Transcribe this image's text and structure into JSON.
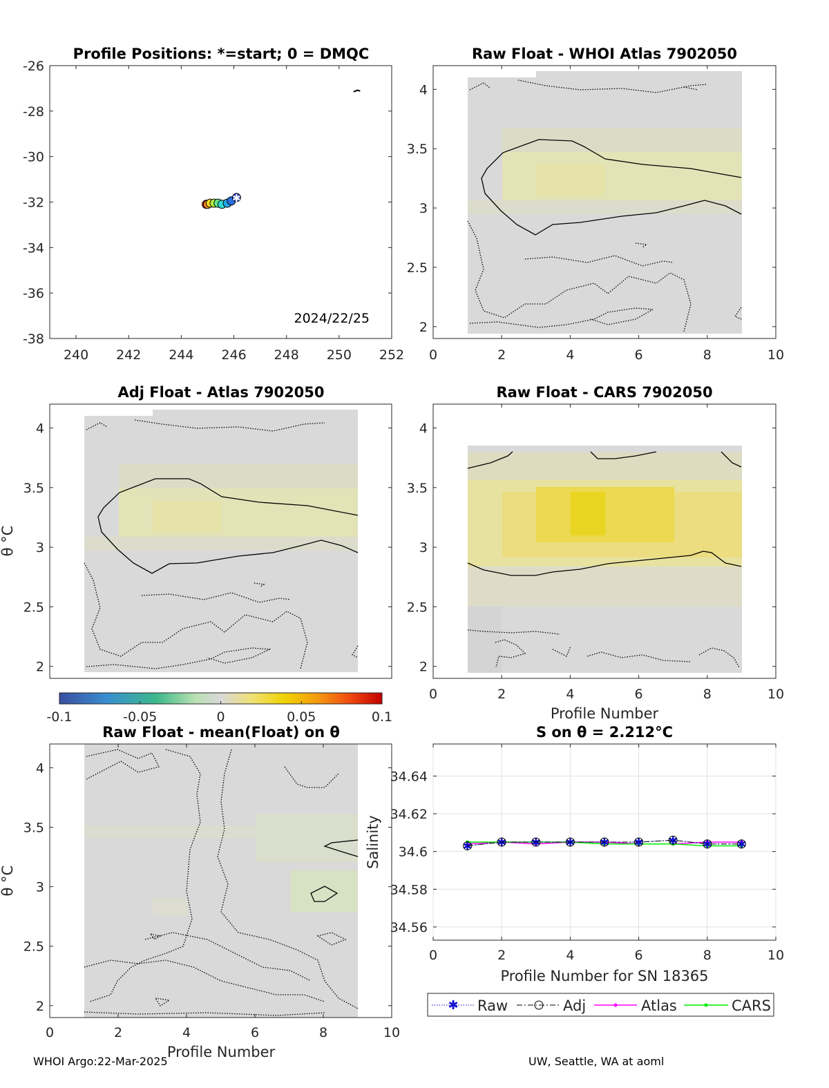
{
  "footer": {
    "left": "WHOI Argo:22-Mar-2025",
    "right": "UW, Seattle, WA at aoml"
  },
  "colorbar": {
    "ticks": [
      "-0.1",
      "-0.05",
      "0",
      "0.05",
      "0.1"
    ],
    "range": [
      -0.1,
      0.1
    ],
    "colormap": "parula-yellow-red"
  },
  "chart_data": [
    {
      "id": "positions",
      "type": "scatter",
      "title": "Profile Positions: *=start; 0 = DMQC",
      "xlim": [
        239,
        252
      ],
      "ylim": [
        -38,
        -26
      ],
      "xticks": [
        "240",
        "242",
        "244",
        "246",
        "248",
        "250",
        "252"
      ],
      "yticks": [
        "-38",
        "-36",
        "-34",
        "-32",
        "-30",
        "-28",
        "-26"
      ],
      "date_label": "2024/22/25",
      "points": [
        {
          "x": 246.1,
          "y": -31.8,
          "color": "#2e3cc8",
          "marker": "star"
        },
        {
          "x": 245.9,
          "y": -31.95,
          "color": "#2a6ee0"
        },
        {
          "x": 245.75,
          "y": -32.05,
          "color": "#1fa8e8"
        },
        {
          "x": 245.55,
          "y": -32.1,
          "color": "#2fd8d0"
        },
        {
          "x": 245.4,
          "y": -32.05,
          "color": "#62e88a"
        },
        {
          "x": 245.25,
          "y": -32.05,
          "color": "#b5ef45"
        },
        {
          "x": 245.1,
          "y": -32.05,
          "color": "#f5d820"
        },
        {
          "x": 245.0,
          "y": -32.1,
          "color": "#f58a1a"
        },
        {
          "x": 244.95,
          "y": -32.1,
          "color": "#e8330e"
        }
      ],
      "coast": [
        [
          250.55,
          -27.15
        ],
        [
          250.7,
          -27.08
        ],
        [
          250.8,
          -27.12
        ]
      ]
    },
    {
      "id": "raw-whoi",
      "type": "heatmap",
      "title": "Raw Float - WHOI Atlas  7902050",
      "xlim": [
        0,
        10
      ],
      "ylim": [
        1.9,
        4.2
      ],
      "xticks": [
        "0",
        "2",
        "4",
        "6",
        "8",
        "10"
      ],
      "yticks": [
        "2",
        "2.5",
        "3",
        "3.5",
        "4"
      ],
      "xlabel": "",
      "ylabel": ""
    },
    {
      "id": "adj-atlas",
      "type": "heatmap",
      "title": "Adj Float - Atlas  7902050",
      "xlim": [
        0,
        10
      ],
      "ylim": [
        1.9,
        4.2
      ],
      "xticks": [],
      "yticks": [
        "2",
        "2.5",
        "3",
        "3.5",
        "4"
      ],
      "xlabel": "",
      "ylabel": "θ °C"
    },
    {
      "id": "raw-cars",
      "type": "heatmap",
      "title": "Raw Float - CARS  7902050",
      "xlim": [
        0,
        10
      ],
      "ylim": [
        1.9,
        4.2
      ],
      "xticks": [
        "0",
        "2",
        "4",
        "6",
        "8",
        "10"
      ],
      "yticks": [
        "2",
        "2.5",
        "3",
        "3.5",
        "4"
      ],
      "xlabel": "Profile Number",
      "ylabel": ""
    },
    {
      "id": "raw-mean",
      "type": "heatmap",
      "title": "Raw Float - mean(Float) on θ",
      "xlim": [
        0,
        10
      ],
      "ylim": [
        1.9,
        4.2
      ],
      "xticks": [
        "0",
        "2",
        "4",
        "6",
        "8",
        "10"
      ],
      "yticks": [
        "2",
        "2.5",
        "3",
        "3.5",
        "4"
      ],
      "xlabel": "Profile Number",
      "ylabel": "θ °C"
    },
    {
      "id": "salinity",
      "type": "line",
      "title": "S on θ = 2.212°C",
      "xlim": [
        0,
        10
      ],
      "ylim": [
        34.553,
        34.657
      ],
      "xticks": [
        "0",
        "2",
        "4",
        "6",
        "8",
        "10"
      ],
      "yticks": [
        "34.56",
        "34.58",
        "34.6",
        "34.62",
        "34.64"
      ],
      "xlabel": "Profile Number for SN 18365",
      "ylabel": "Salinity",
      "x": [
        1,
        2,
        3,
        4,
        5,
        6,
        7,
        8,
        9
      ],
      "series": [
        {
          "name": "Raw",
          "color": "#1010d0",
          "values": [
            34.603,
            34.605,
            34.605,
            34.605,
            34.605,
            34.605,
            34.606,
            34.604,
            34.604
          ]
        },
        {
          "name": "Adj",
          "color": "#000000",
          "values": [
            34.603,
            34.605,
            34.605,
            34.605,
            34.605,
            34.605,
            34.606,
            34.604,
            34.604
          ]
        },
        {
          "name": "Atlas",
          "color": "#ff00ff",
          "values": [
            34.604,
            34.605,
            34.604,
            34.605,
            34.605,
            34.604,
            34.604,
            34.605,
            34.605
          ]
        },
        {
          "name": "CARS",
          "color": "#00ee00",
          "values": [
            34.605,
            34.605,
            34.605,
            34.605,
            34.604,
            34.604,
            34.604,
            34.603,
            34.603
          ]
        }
      ]
    }
  ]
}
